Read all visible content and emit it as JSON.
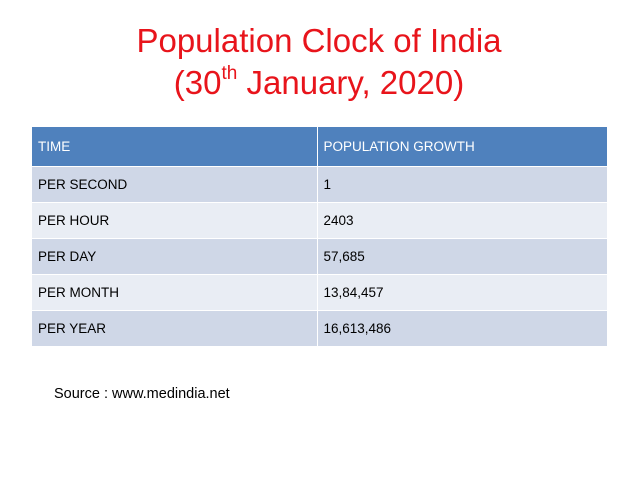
{
  "title": {
    "line1": "Population Clock of India",
    "line2_prefix": "(30",
    "line2_sup": "th",
    "line2_suffix": " January, 2020)"
  },
  "table": {
    "headers": [
      "TIME",
      "POPULATION GROWTH"
    ],
    "rows": [
      [
        "PER SECOND",
        "1"
      ],
      [
        "PER HOUR",
        "2403"
      ],
      [
        "PER DAY",
        "57,685"
      ],
      [
        "PER MONTH",
        "13,84,457"
      ],
      [
        "PER YEAR",
        "16,613,486"
      ]
    ]
  },
  "source": "Source : www.medindia.net",
  "colors": {
    "title": "#e8141b",
    "header_bg": "#4f81bd",
    "row_odd_bg": "#cfd7e7",
    "row_even_bg": "#e9edf4"
  }
}
